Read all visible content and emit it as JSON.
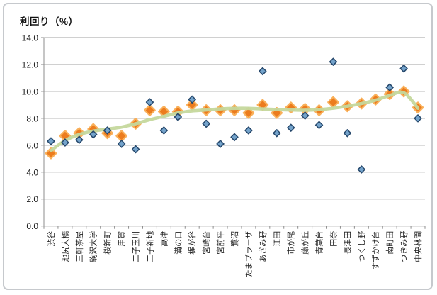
{
  "title": "利回り（%）",
  "chart_data": {
    "type": "scatter",
    "title": "利回り（%）",
    "xlabel": "",
    "ylabel": "利回り（%）",
    "ylim": [
      0,
      14
    ],
    "ytick_step": 2,
    "y_tick_labels": [
      "0.0",
      "2.0",
      "4.0",
      "6.0",
      "8.0",
      "10.0",
      "12.0",
      "14.0"
    ],
    "grid": true,
    "legend_position": "none",
    "categories": [
      "渋谷",
      "池尻大橋",
      "三軒茶屋",
      "駒沢大学",
      "桜新町",
      "用賀",
      "二子玉川",
      "二子新地",
      "高津",
      "溝の口",
      "梶が谷",
      "宮崎台",
      "宮前平",
      "鷺沼",
      "たまプラーザ",
      "あざみ野",
      "江田",
      "市が尾",
      "藤が丘",
      "青葉台",
      "田奈",
      "長津田",
      "つくし野",
      "すずかけ台",
      "南町田",
      "つきみ野",
      "中央林間"
    ],
    "series": [
      {
        "name": "blue_points",
        "marker": "diamond",
        "fill": "#74a3cb",
        "border": "#25476b",
        "values": [
          6.3,
          6.2,
          6.4,
          6.8,
          7.1,
          6.1,
          5.7,
          9.2,
          7.1,
          8.1,
          9.4,
          7.6,
          6.1,
          6.6,
          7.1,
          11.5,
          6.9,
          7.3,
          8.2,
          7.5,
          12.2,
          6.9,
          4.2,
          null,
          10.3,
          11.7,
          8.0
        ]
      },
      {
        "name": "orange_points",
        "marker": "diamond",
        "fill": "#ec7c1e",
        "border": "#f9b05a",
        "values": [
          5.4,
          6.7,
          6.9,
          7.2,
          6.9,
          6.7,
          7.6,
          8.6,
          8.5,
          8.5,
          9.0,
          8.6,
          8.6,
          8.6,
          8.4,
          9.0,
          8.4,
          8.8,
          8.7,
          8.6,
          9.2,
          8.9,
          9.1,
          9.4,
          9.8,
          10.0,
          8.8
        ]
      },
      {
        "name": "trend_line",
        "marker": "none",
        "line_color": "#c5d89d",
        "values": [
          5.6,
          6.35,
          6.8,
          7.05,
          7.2,
          7.35,
          7.6,
          7.9,
          8.15,
          8.4,
          8.55,
          8.62,
          8.7,
          8.74,
          8.74,
          8.7,
          8.65,
          8.62,
          8.6,
          8.65,
          8.75,
          8.9,
          9.1,
          9.35,
          9.7,
          9.9,
          8.75
        ]
      }
    ]
  },
  "colors": {
    "gridline": "#a0a0a0",
    "axis": "#8e8e8e",
    "frame_border": "#c6c9cd",
    "text": "#222222",
    "blue_fill": "#74a3cb",
    "blue_border": "#25476b",
    "orange_fill": "#ec7c1e",
    "orange_border": "#f9b05a",
    "trend_green": "#c5d89d"
  }
}
